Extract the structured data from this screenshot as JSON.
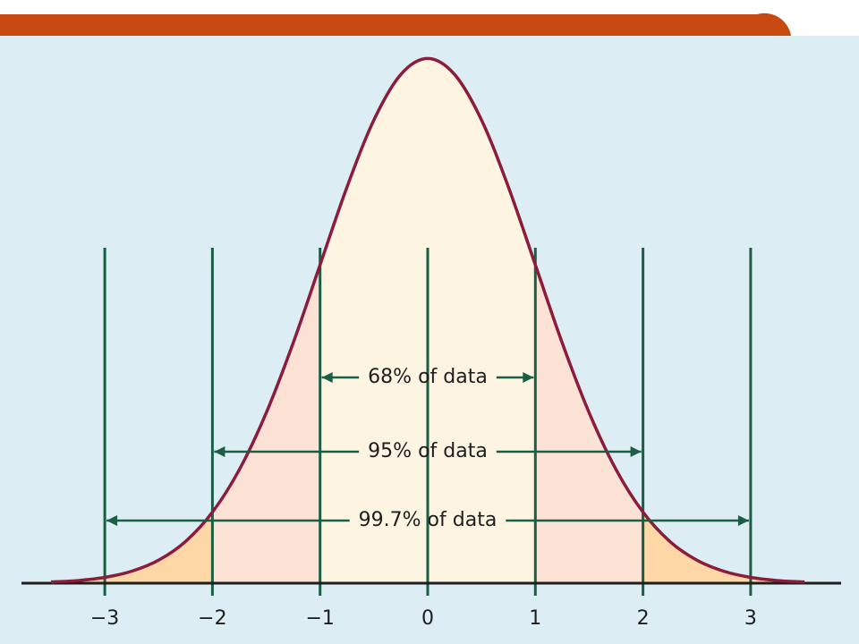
{
  "chart_data": {
    "type": "line",
    "x": [
      -3.5,
      -3.25,
      -3,
      -2.75,
      -2.5,
      -2.25,
      -2,
      -1.75,
      -1.5,
      -1.25,
      -1,
      -0.75,
      -0.5,
      -0.25,
      0,
      0.25,
      0.5,
      0.75,
      1,
      1.25,
      1.5,
      1.75,
      2,
      2.25,
      2.5,
      2.75,
      3,
      3.25,
      3.5
    ],
    "values": [
      0.0009,
      0.002,
      0.0044,
      0.0091,
      0.0175,
      0.0317,
      0.054,
      0.0863,
      0.1295,
      0.1826,
      0.242,
      0.3011,
      0.3521,
      0.3867,
      0.3989,
      0.3867,
      0.3521,
      0.3011,
      0.242,
      0.1826,
      0.1295,
      0.0863,
      0.054,
      0.0317,
      0.0175,
      0.0091,
      0.0044,
      0.002,
      0.0009
    ],
    "xlim": [
      -3.8,
      3.8
    ],
    "ylim": [
      0,
      0.4
    ],
    "xticks": [
      {
        "value": -3,
        "label": "−3"
      },
      {
        "value": -2,
        "label": "−2"
      },
      {
        "value": -1,
        "label": "−1"
      },
      0,
      1,
      2,
      3
    ],
    "intervals": [
      {
        "label": "68% of data",
        "from": -1,
        "to": 1
      },
      {
        "label": "95% of data",
        "from": -2,
        "to": 2
      },
      {
        "label": "99.7% of data",
        "from": -3,
        "to": 3
      }
    ],
    "colors": {
      "line": "#8b1c3c",
      "inner": "#fdf4e2",
      "middle": "#fce2d4",
      "outer": "#fdd7a6",
      "guide": "#1b5e46"
    }
  }
}
